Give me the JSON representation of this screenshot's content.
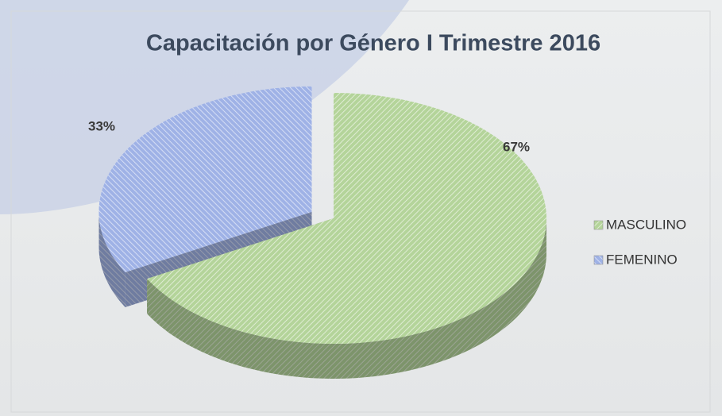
{
  "chart_data": {
    "type": "pie",
    "title": "Capacitación por Género I Trimestre 2016",
    "categories": [
      "MASCULINO",
      "FEMENINO"
    ],
    "values": [
      67,
      33
    ],
    "value_labels": [
      "67%",
      "33%"
    ],
    "colors": [
      "#b4d49a",
      "#9fb2e6"
    ],
    "legend": "right"
  }
}
